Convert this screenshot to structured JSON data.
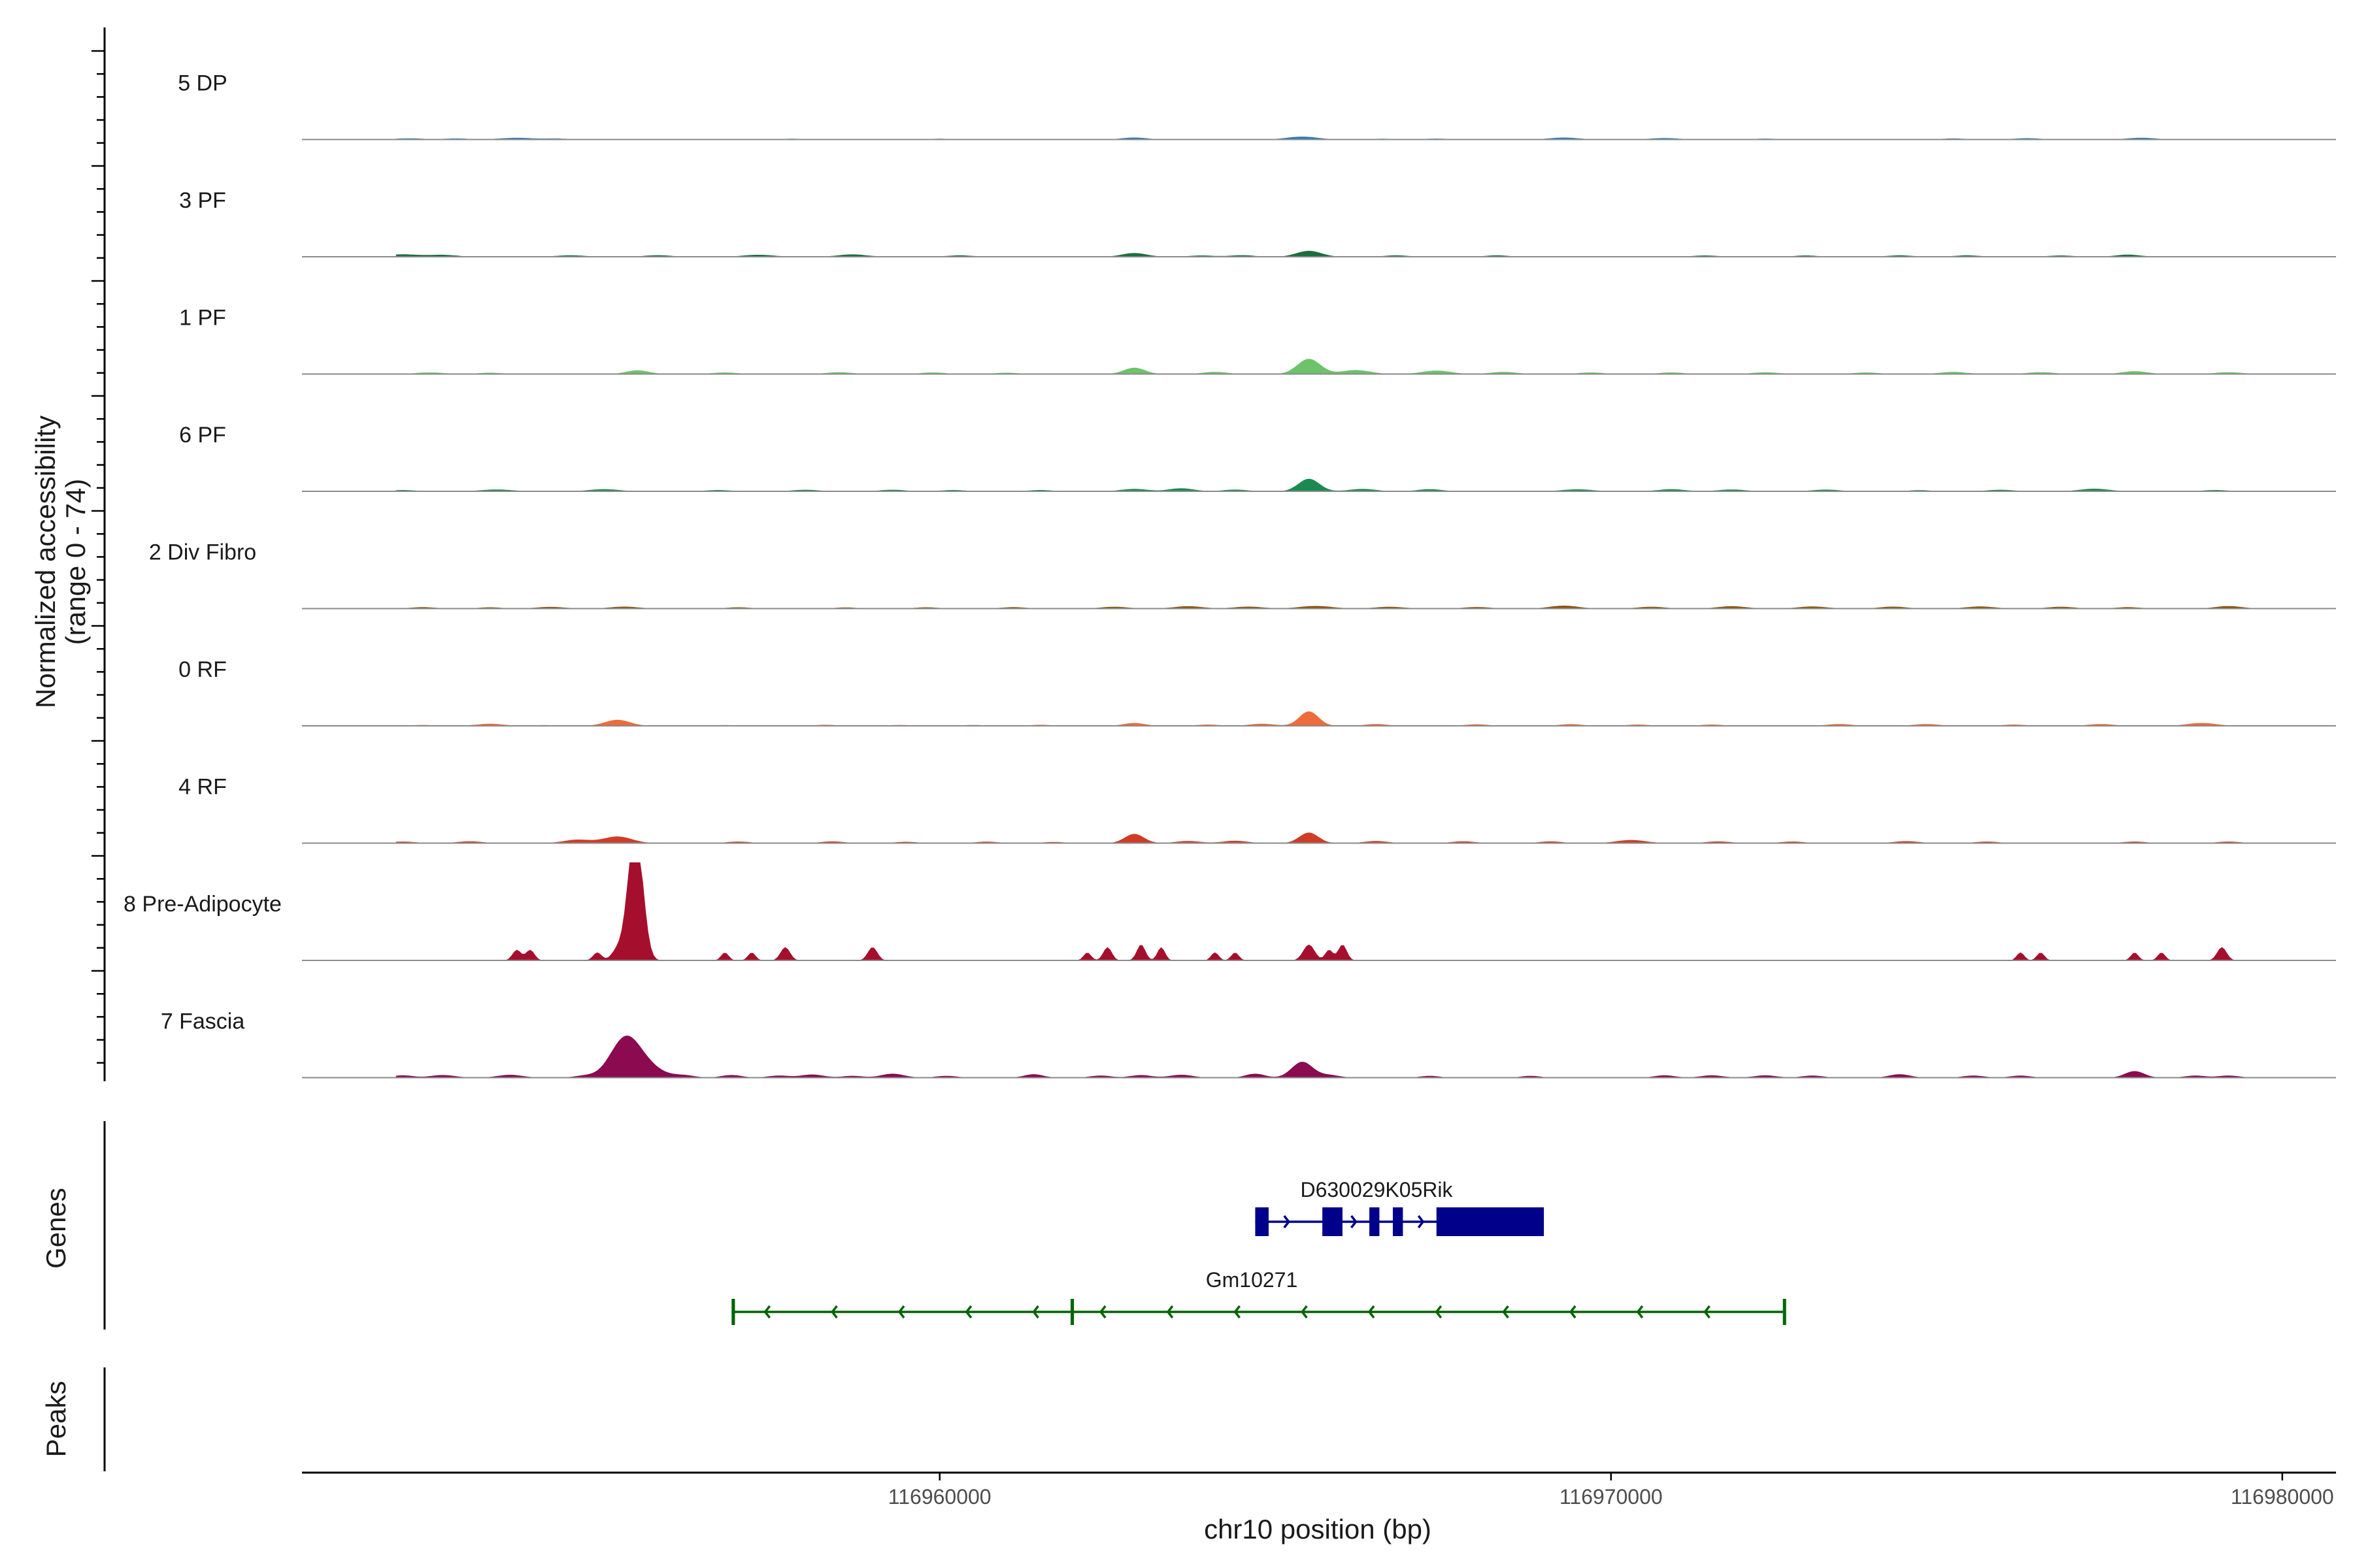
{
  "chart_data": {
    "type": "area",
    "ylabel_line1": "Normalized accessibility",
    "ylabel_line2": "(range 0 - 74)",
    "ylim": [
      0,
      74
    ],
    "xlabel": "chr10 position (bp)",
    "xlim": [
      116950500,
      116980800
    ],
    "xticks": [
      116960000,
      116970000,
      116980000
    ],
    "xtick_labels": [
      "116960000",
      "116970000",
      "116980000"
    ],
    "tracks": [
      {
        "name": "5 DP",
        "color": "#2b7bba",
        "peaks": [
          [
            116952100,
            0.9,
            300
          ],
          [
            116952800,
            0.8,
            260
          ],
          [
            116953700,
            1.3,
            350
          ],
          [
            116954300,
            0.7,
            250
          ],
          [
            116957800,
            0.6,
            220
          ],
          [
            116960000,
            0.6,
            220
          ],
          [
            116962900,
            1.5,
            260
          ],
          [
            116965400,
            2.2,
            320
          ],
          [
            116966600,
            0.6,
            220
          ],
          [
            116967400,
            0.7,
            250
          ],
          [
            116969300,
            1.5,
            300
          ],
          [
            116970800,
            1.1,
            300
          ],
          [
            116972300,
            0.7,
            250
          ],
          [
            116975100,
            0.8,
            250
          ],
          [
            116976200,
            1.0,
            280
          ],
          [
            116977900,
            1.3,
            300
          ]
        ]
      },
      {
        "name": "3 PF",
        "color": "#1b6e3f",
        "peaks": [
          [
            116952000,
            1.8,
            350
          ],
          [
            116952600,
            1.4,
            300
          ],
          [
            116954500,
            1.1,
            300
          ],
          [
            116955800,
            1.2,
            280
          ],
          [
            116957300,
            1.5,
            320
          ],
          [
            116958700,
            1.8,
            300
          ],
          [
            116960300,
            1.1,
            260
          ],
          [
            116962900,
            2.8,
            260
          ],
          [
            116963900,
            1.0,
            260
          ],
          [
            116964500,
            1.2,
            260
          ],
          [
            116965500,
            4.5,
            260
          ],
          [
            116966800,
            1.1,
            240
          ],
          [
            116968300,
            1.1,
            240
          ],
          [
            116971400,
            1.0,
            260
          ],
          [
            116972900,
            1.0,
            240
          ],
          [
            116974300,
            1.1,
            260
          ],
          [
            116975300,
            1.1,
            260
          ],
          [
            116976700,
            1.0,
            260
          ],
          [
            116977700,
            1.6,
            260
          ]
        ]
      },
      {
        "name": "1 PF",
        "color": "#6cc36a",
        "peaks": [
          [
            116952400,
            1.2,
            300
          ],
          [
            116953300,
            1.0,
            260
          ],
          [
            116955500,
            2.8,
            240
          ],
          [
            116956800,
            1.2,
            260
          ],
          [
            116958500,
            1.4,
            260
          ],
          [
            116959900,
            1.2,
            260
          ],
          [
            116961000,
            1.0,
            240
          ],
          [
            116962900,
            4.8,
            220
          ],
          [
            116964100,
            1.6,
            260
          ],
          [
            116965500,
            11.5,
            240
          ],
          [
            116966200,
            3.0,
            300
          ],
          [
            116967400,
            2.6,
            300
          ],
          [
            116968400,
            1.6,
            280
          ],
          [
            116969700,
            1.2,
            260
          ],
          [
            116970900,
            1.2,
            260
          ],
          [
            116972300,
            1.3,
            280
          ],
          [
            116973800,
            1.2,
            260
          ],
          [
            116975100,
            1.6,
            280
          ],
          [
            116976400,
            1.4,
            280
          ],
          [
            116977800,
            2.2,
            260
          ],
          [
            116979200,
            1.4,
            280
          ]
        ]
      },
      {
        "name": "6 PF",
        "color": "#1a8a50",
        "peaks": [
          [
            116952000,
            1.0,
            260
          ],
          [
            116953400,
            1.4,
            320
          ],
          [
            116955000,
            1.6,
            320
          ],
          [
            116956700,
            1.0,
            260
          ],
          [
            116958000,
            1.2,
            280
          ],
          [
            116959300,
            1.2,
            260
          ],
          [
            116960200,
            1.0,
            240
          ],
          [
            116961500,
            1.0,
            240
          ],
          [
            116962900,
            1.8,
            280
          ],
          [
            116963600,
            2.3,
            260
          ],
          [
            116964400,
            1.3,
            260
          ],
          [
            116965500,
            9.5,
            220
          ],
          [
            116966300,
            1.8,
            280
          ],
          [
            116967300,
            1.6,
            260
          ],
          [
            116969500,
            1.5,
            320
          ],
          [
            116970900,
            1.6,
            280
          ],
          [
            116971800,
            1.4,
            280
          ],
          [
            116973200,
            1.3,
            280
          ],
          [
            116974600,
            0.9,
            220
          ],
          [
            116975800,
            1.2,
            280
          ],
          [
            116977200,
            2.0,
            300
          ],
          [
            116979000,
            1.0,
            260
          ]
        ]
      },
      {
        "name": "2 Div Fibro",
        "color": "#8c510a",
        "peaks": [
          [
            116952300,
            1.1,
            260
          ],
          [
            116953300,
            1.0,
            240
          ],
          [
            116954200,
            1.3,
            300
          ],
          [
            116955300,
            1.5,
            300
          ],
          [
            116957000,
            1.0,
            240
          ],
          [
            116958600,
            0.9,
            240
          ],
          [
            116959800,
            1.0,
            240
          ],
          [
            116961100,
            1.1,
            260
          ],
          [
            116962600,
            1.4,
            280
          ],
          [
            116963700,
            1.8,
            300
          ],
          [
            116964600,
            1.5,
            300
          ],
          [
            116965600,
            2.0,
            340
          ],
          [
            116966700,
            1.4,
            300
          ],
          [
            116968000,
            1.2,
            280
          ],
          [
            116969300,
            2.2,
            300
          ],
          [
            116970600,
            1.4,
            280
          ],
          [
            116971800,
            1.8,
            300
          ],
          [
            116973000,
            1.6,
            300
          ],
          [
            116974200,
            1.5,
            280
          ],
          [
            116975500,
            1.6,
            300
          ],
          [
            116976700,
            1.4,
            280
          ],
          [
            116977700,
            1.1,
            260
          ],
          [
            116979200,
            1.9,
            280
          ]
        ]
      },
      {
        "name": "0 RF",
        "color": "#ee6b3b",
        "peaks": [
          [
            116952300,
            0.7,
            240
          ],
          [
            116953300,
            1.6,
            280
          ],
          [
            116954100,
            0.6,
            220
          ],
          [
            116955200,
            4.6,
            260
          ],
          [
            116956800,
            0.6,
            220
          ],
          [
            116958300,
            0.8,
            240
          ],
          [
            116959400,
            0.7,
            220
          ],
          [
            116960500,
            0.7,
            220
          ],
          [
            116961500,
            0.8,
            240
          ],
          [
            116962900,
            2.2,
            220
          ],
          [
            116964000,
            1.0,
            240
          ],
          [
            116964800,
            1.6,
            260
          ],
          [
            116965500,
            11.0,
            200
          ],
          [
            116966500,
            1.4,
            240
          ],
          [
            116968000,
            1.2,
            240
          ],
          [
            116969400,
            1.3,
            240
          ],
          [
            116970400,
            1.0,
            240
          ],
          [
            116971500,
            1.0,
            240
          ],
          [
            116973400,
            1.4,
            260
          ],
          [
            116974700,
            1.4,
            260
          ],
          [
            116976000,
            1.0,
            240
          ],
          [
            116977300,
            1.4,
            260
          ],
          [
            116978800,
            2.2,
            300
          ]
        ]
      },
      {
        "name": "4 RF",
        "color": "#d03c27",
        "peaks": [
          [
            116952000,
            1.2,
            260
          ],
          [
            116953000,
            1.4,
            260
          ],
          [
            116954600,
            2.6,
            280
          ],
          [
            116955200,
            5.0,
            300
          ],
          [
            116957000,
            1.2,
            240
          ],
          [
            116958400,
            1.3,
            240
          ],
          [
            116959500,
            1.0,
            240
          ],
          [
            116960700,
            1.1,
            240
          ],
          [
            116961700,
            0.9,
            220
          ],
          [
            116962900,
            7.0,
            200
          ],
          [
            116963700,
            1.6,
            260
          ],
          [
            116964400,
            1.8,
            260
          ],
          [
            116965500,
            8.0,
            200
          ],
          [
            116966500,
            1.6,
            240
          ],
          [
            116967800,
            1.4,
            240
          ],
          [
            116969100,
            1.3,
            240
          ],
          [
            116970300,
            2.4,
            300
          ],
          [
            116971600,
            1.3,
            260
          ],
          [
            116972700,
            1.2,
            240
          ],
          [
            116974400,
            1.5,
            260
          ],
          [
            116975600,
            1.2,
            240
          ],
          [
            116977800,
            1.2,
            240
          ],
          [
            116979200,
            1.2,
            240
          ]
        ]
      },
      {
        "name": "8 Pre-Adipocyte",
        "color": "#a50f2d",
        "peaks": [
          [
            116953700,
            8.0,
            90
          ],
          [
            116953900,
            8.0,
            90
          ],
          [
            116954900,
            6.0,
            90
          ],
          [
            116955200,
            8.0,
            120
          ],
          [
            116955500,
            74.0,
            140
          ],
          [
            116955400,
            40.0,
            130
          ],
          [
            116956800,
            6.0,
            80
          ],
          [
            116957200,
            6.0,
            80
          ],
          [
            116957700,
            10.0,
            100
          ],
          [
            116959000,
            10.0,
            100
          ],
          [
            116962200,
            6.0,
            80
          ],
          [
            116962500,
            10.0,
            90
          ],
          [
            116963000,
            12.0,
            90
          ],
          [
            116963300,
            10.0,
            80
          ],
          [
            116964100,
            6.0,
            80
          ],
          [
            116964400,
            6.0,
            80
          ],
          [
            116965500,
            12.0,
            120
          ],
          [
            116965800,
            8.0,
            80
          ],
          [
            116966000,
            12.0,
            90
          ],
          [
            116976100,
            6.0,
            80
          ],
          [
            116976400,
            6.0,
            80
          ],
          [
            116977800,
            6.0,
            80
          ],
          [
            116978200,
            6.0,
            80
          ],
          [
            116979100,
            10.0,
            100
          ]
        ]
      },
      {
        "name": "7 Fascia",
        "color": "#8b0a50",
        "peaks": [
          [
            116952000,
            1.8,
            220
          ],
          [
            116952600,
            2.0,
            260
          ],
          [
            116953600,
            2.2,
            260
          ],
          [
            116954700,
            1.4,
            220
          ],
          [
            116955300,
            22.0,
            300
          ],
          [
            116955500,
            12.0,
            400
          ],
          [
            116956200,
            1.6,
            220
          ],
          [
            116956900,
            2.0,
            220
          ],
          [
            116957600,
            1.6,
            220
          ],
          [
            116958100,
            2.4,
            240
          ],
          [
            116958700,
            1.4,
            220
          ],
          [
            116959300,
            3.0,
            240
          ],
          [
            116960100,
            1.4,
            220
          ],
          [
            116961400,
            2.6,
            200
          ],
          [
            116962400,
            1.6,
            220
          ],
          [
            116963000,
            2.0,
            220
          ],
          [
            116963600,
            2.2,
            240
          ],
          [
            116964700,
            3.0,
            200
          ],
          [
            116965400,
            12.0,
            220
          ],
          [
            116965800,
            2.0,
            220
          ],
          [
            116967300,
            1.4,
            200
          ],
          [
            116968800,
            1.4,
            200
          ],
          [
            116970800,
            1.8,
            220
          ],
          [
            116971500,
            1.8,
            240
          ],
          [
            116972300,
            1.8,
            240
          ],
          [
            116973000,
            1.6,
            220
          ],
          [
            116974300,
            2.6,
            220
          ],
          [
            116975400,
            1.6,
            220
          ],
          [
            116976100,
            1.6,
            220
          ],
          [
            116977800,
            5.0,
            200
          ],
          [
            116978700,
            1.6,
            220
          ],
          [
            116979200,
            1.6,
            220
          ]
        ]
      }
    ],
    "genes": [
      {
        "name": "D630029K05Rik",
        "color": "#00008b",
        "strand": "+",
        "start": 116964700,
        "end": 116969000,
        "exons": [
          [
            116964700,
            116964900
          ],
          [
            116965700,
            116966000
          ],
          [
            116966400,
            116966550
          ],
          [
            116966750,
            116966900
          ],
          [
            116967400,
            116969000
          ]
        ]
      },
      {
        "name": "Gm10271",
        "color": "#006400",
        "strand": "-",
        "start": 116956900,
        "end": 116972600,
        "exons": [
          [
            116956900,
            116956950
          ],
          [
            116961950,
            116962000
          ],
          [
            116972560,
            116972600
          ]
        ]
      }
    ]
  },
  "panels": {
    "genes_label": "Genes",
    "peaks_label": "Peaks"
  }
}
